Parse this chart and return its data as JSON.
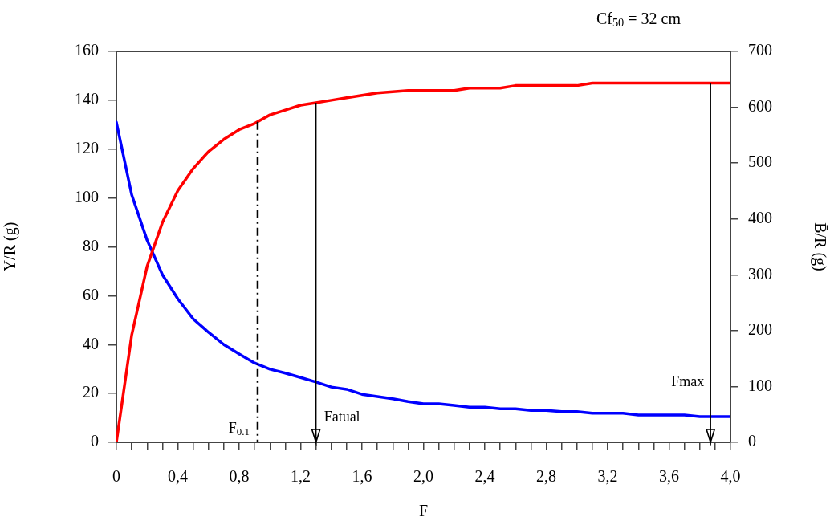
{
  "chart_data": {
    "type": "line",
    "xlabel": "F",
    "ylabel": "Y/R (g)",
    "y2label": "B̄/R (g)",
    "marker": "none",
    "line_style": "solid",
    "x": [
      0,
      0.1,
      0.2,
      0.3,
      0.4,
      0.5,
      0.6,
      0.7,
      0.8,
      0.9,
      1.0,
      1.1,
      1.2,
      1.3,
      1.4,
      1.5,
      1.6,
      1.7,
      1.8,
      1.9,
      2.0,
      2.1,
      2.2,
      2.3,
      2.4,
      2.5,
      2.6,
      2.7,
      2.8,
      2.9,
      3.0,
      3.1,
      3.2,
      3.3,
      3.4,
      3.5,
      3.6,
      3.7,
      3.8,
      3.9,
      4.0
    ],
    "series": [
      {
        "color": "#ff0000",
        "values": [
          0,
          44,
          72,
          90,
          103,
          112,
          119,
          124,
          128,
          130.5,
          134,
          136,
          138,
          139,
          140,
          141,
          142,
          143,
          143.5,
          144,
          144,
          144,
          144,
          145,
          145,
          145,
          146,
          146,
          146,
          146,
          146,
          147,
          147,
          147,
          147,
          147,
          147,
          147,
          147,
          147,
          147
        ]
      },
      {
        "color": "#0000ff",
        "axis": "y2",
        "values": [
          573,
          443,
          362,
          300,
          257,
          221,
          197,
          175,
          158,
          142,
          131,
          124,
          116,
          108,
          99,
          95,
          86,
          82,
          78,
          73,
          69,
          69,
          66,
          63,
          63,
          60,
          60,
          57,
          57,
          55,
          55,
          52,
          52,
          52,
          49,
          49,
          49,
          49,
          46,
          46,
          46
        ]
      }
    ],
    "xlim": [
      0,
      4
    ],
    "xticks": [
      {
        "value": 0,
        "label": "0"
      },
      {
        "value": 0.1,
        "label": null
      },
      {
        "value": 0.2,
        "label": null
      },
      {
        "value": 0.3,
        "label": null
      },
      {
        "value": 0.4,
        "label": "0,4"
      },
      {
        "value": 0.5,
        "label": null
      },
      {
        "value": 0.6,
        "label": null
      },
      {
        "value": 0.7,
        "label": null
      },
      {
        "value": 0.8,
        "label": "0,8"
      },
      {
        "value": 0.9,
        "label": null
      },
      {
        "value": 1.0,
        "label": null
      },
      {
        "value": 1.1,
        "label": null
      },
      {
        "value": 1.2,
        "label": "1,2"
      },
      {
        "value": 1.3,
        "label": null
      },
      {
        "value": 1.4,
        "label": null
      },
      {
        "value": 1.5,
        "label": null
      },
      {
        "value": 1.6,
        "label": "1,6"
      },
      {
        "value": 1.7,
        "label": null
      },
      {
        "value": 1.8,
        "label": null
      },
      {
        "value": 1.9,
        "label": null
      },
      {
        "value": 2.0,
        "label": "2,0"
      },
      {
        "value": 2.1,
        "label": null
      },
      {
        "value": 2.2,
        "label": null
      },
      {
        "value": 2.3,
        "label": null
      },
      {
        "value": 2.4,
        "label": "2,4"
      },
      {
        "value": 2.5,
        "label": null
      },
      {
        "value": 2.6,
        "label": null
      },
      {
        "value": 2.7,
        "label": null
      },
      {
        "value": 2.8,
        "label": "2,8"
      },
      {
        "value": 2.9,
        "label": null
      },
      {
        "value": 3.0,
        "label": null
      },
      {
        "value": 3.1,
        "label": null
      },
      {
        "value": 3.2,
        "label": "3,2"
      },
      {
        "value": 3.3,
        "label": null
      },
      {
        "value": 3.4,
        "label": null
      },
      {
        "value": 3.5,
        "label": null
      },
      {
        "value": 3.6,
        "label": "3,6"
      },
      {
        "value": 3.7,
        "label": null
      },
      {
        "value": 3.8,
        "label": null
      },
      {
        "value": 3.9,
        "label": null
      },
      {
        "value": 4.0,
        "label": "4,0"
      }
    ],
    "ylim": [
      0,
      160
    ],
    "yticks": [
      0,
      20,
      40,
      60,
      80,
      100,
      120,
      140,
      160
    ],
    "y2lim": [
      0,
      700
    ],
    "y2ticks": [
      0,
      100,
      200,
      300,
      400,
      500,
      600,
      700
    ],
    "ref_lines": [
      {
        "axis": "x",
        "value": 0.92,
        "label": "F$_{0.1}$",
        "line_style": "dashdot",
        "color": "#000000"
      },
      {
        "axis": "x",
        "value": 1.3,
        "label": "Fatual",
        "line_style": "solid",
        "color": "#000000"
      },
      {
        "axis": "x",
        "value": 3.87,
        "label": "Fmax",
        "line_style": "solid",
        "color": "#000000"
      }
    ],
    "annotations": [
      "Cf$_{50}$ = 32 cm"
    ]
  }
}
